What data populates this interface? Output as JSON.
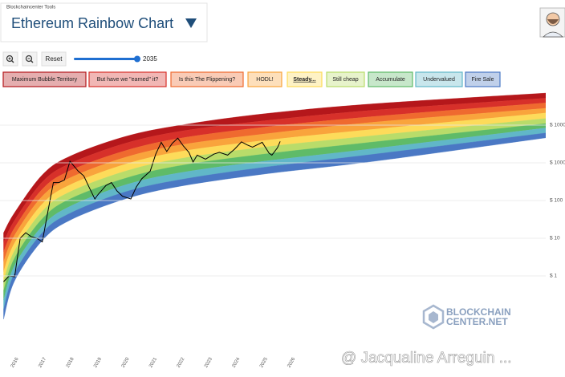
{
  "header": {
    "brand": "Blockchaincenter Tools",
    "title": "Ethereum Rainbow Chart"
  },
  "controls": {
    "reset": "Reset",
    "slider_value": 2035
  },
  "watermark": {
    "logo_line1": "BLOCKCHAIN",
    "logo_line2": "CENTER.NET",
    "credit": "@ Jacqualine Arreguin ..."
  },
  "chart_data": {
    "type": "line",
    "log_scale": true,
    "grid": true,
    "color": "#000000",
    "x": [
      2015.6,
      2015.8,
      2016.0,
      2016.2,
      2016.4,
      2016.6,
      2016.8,
      2017.0,
      2017.2,
      2017.4,
      2017.6,
      2017.8,
      2018.0,
      2018.1,
      2018.3,
      2018.5,
      2018.7,
      2018.9,
      2019.0,
      2019.3,
      2019.5,
      2019.7,
      2019.9,
      2020.2,
      2020.4,
      2020.6,
      2020.9,
      2021.1,
      2021.3,
      2021.5,
      2021.7,
      2021.9,
      2022.1,
      2022.3,
      2022.45,
      2022.6,
      2022.9,
      2023.2,
      2023.4,
      2023.7,
      2023.95,
      2024.2,
      2024.4,
      2024.6,
      2024.95,
      2025.2,
      2025.3,
      2025.5,
      2025.6
    ],
    "values": [
      0.7,
      1.0,
      0.95,
      10,
      14,
      11,
      10,
      8,
      50,
      300,
      300,
      350,
      1100,
      900,
      600,
      450,
      220,
      110,
      140,
      250,
      300,
      180,
      130,
      110,
      230,
      380,
      600,
      1700,
      3500,
      2000,
      3300,
      4500,
      2800,
      1900,
      1050,
      1600,
      1250,
      1700,
      1900,
      1600,
      2300,
      3600,
      3000,
      2600,
      3500,
      1800,
      1600,
      2500,
      3700
    ],
    "xlim": [
      2015.5,
      2035.2
    ],
    "ylim": [
      0.01,
      100000
    ],
    "xticks": [
      2016,
      2017,
      2018,
      2019,
      2020,
      2021,
      2022,
      2023,
      2024,
      2025,
      2026
    ],
    "yticks": [
      {
        "value": 1,
        "label": "$ 1"
      },
      {
        "value": 10,
        "label": "$ 10"
      },
      {
        "value": 100,
        "label": "$ 100"
      },
      {
        "value": 1000,
        "label": "$ 1000"
      },
      {
        "value": 10000,
        "label": "$ 10000"
      }
    ],
    "band_x": [
      2015.6,
      2016,
      2017,
      2018,
      2020,
      2022,
      2025,
      2029,
      2035.2
    ],
    "bands": [
      {
        "name": "Maximum Bubble Territory",
        "color": "#b5171b",
        "values": [
          14,
          48,
          480,
          1500,
          5000,
          10000,
          20000,
          37000,
          71000
        ]
      },
      {
        "name": "But have we \"earned\" it?",
        "color": "#d7302a",
        "values": [
          7.8,
          30,
          310,
          960,
          3300,
          6900,
          13000,
          25000,
          52000
        ]
      },
      {
        "name": "Is this The Flippening?",
        "color": "#ef6a2f",
        "values": [
          4.4,
          19,
          200,
          620,
          2100,
          4500,
          8800,
          17000,
          39000
        ]
      },
      {
        "name": "HODL!",
        "color": "#f9a43c",
        "values": [
          2.4,
          12,
          130,
          400,
          1400,
          3000,
          5800,
          12000,
          28000
        ]
      },
      {
        "name": "Steady...",
        "color": "#fddb5a",
        "values": [
          1.3,
          7.5,
          81,
          260,
          920,
          2000,
          3900,
          7800,
          21000
        ]
      },
      {
        "name": "Still cheap",
        "color": "#b9dc6a",
        "values": [
          0.74,
          4.7,
          52,
          170,
          600,
          1300,
          2600,
          5300,
          15000
        ]
      },
      {
        "name": "Accumulate",
        "color": "#5fbb68",
        "values": [
          0.41,
          3.0,
          33,
          110,
          390,
          850,
          1700,
          3600,
          11000
        ]
      },
      {
        "name": "Undervalued",
        "color": "#61b7c8",
        "values": [
          0.23,
          1.9,
          21,
          70,
          260,
          550,
          1100,
          2400,
          8400
        ]
      },
      {
        "name": "Fire Sale",
        "color": "#4a78c4",
        "values": [
          0.13,
          1.2,
          14,
          46,
          170,
          360,
          760,
          1700,
          6200
        ]
      }
    ],
    "band_floor": [
      0.071,
      0.74,
      8.7,
      30,
      110,
      240,
      500,
      1100,
      4600
    ]
  }
}
